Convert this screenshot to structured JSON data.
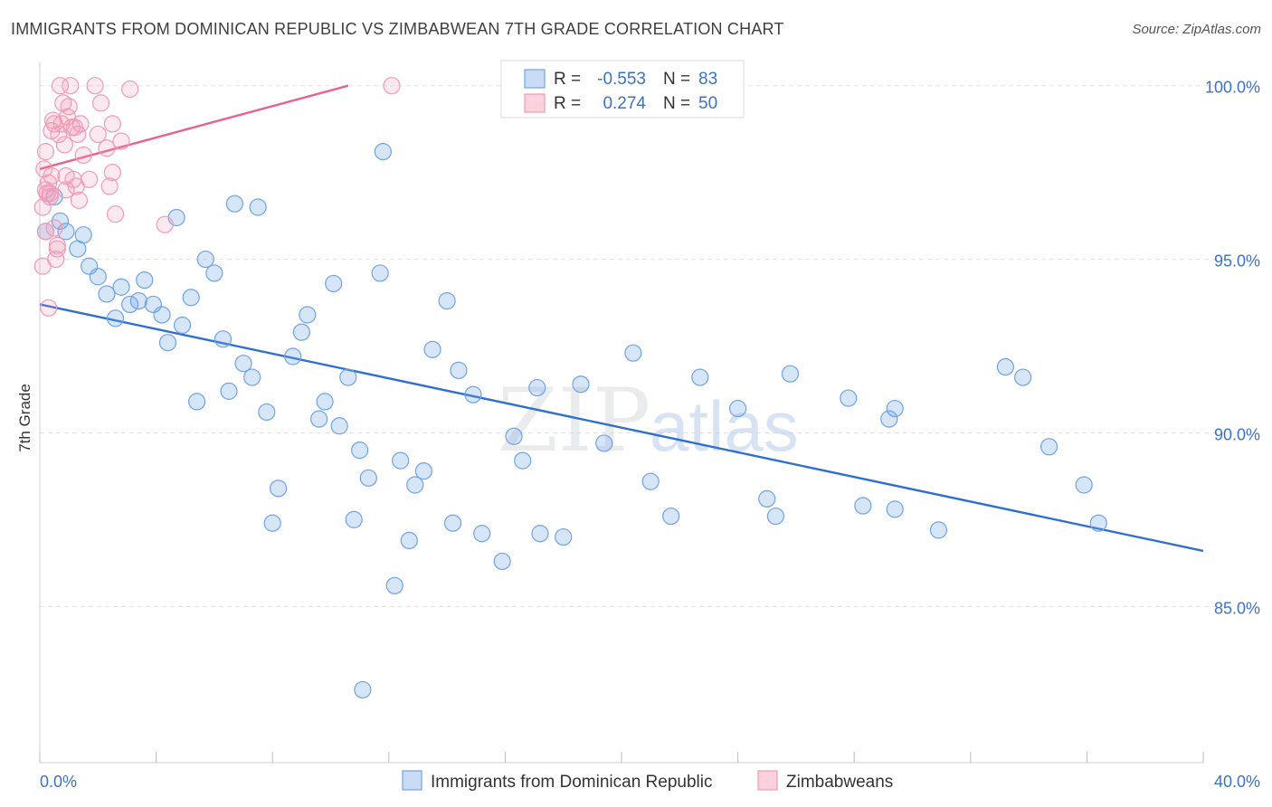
{
  "title": "IMMIGRANTS FROM DOMINICAN REPUBLIC VS ZIMBABWEAN 7TH GRADE CORRELATION CHART",
  "source": "Source: ZipAtlas.com",
  "watermark": {
    "zip": "ZIP",
    "atlas": "atlas"
  },
  "chart_data": {
    "type": "scatter",
    "title": "IMMIGRANTS FROM DOMINICAN REPUBLIC VS ZIMBABWEAN 7TH GRADE CORRELATION CHART",
    "xlabel": "",
    "ylabel": "7th Grade",
    "xlim": [
      0,
      40
    ],
    "ylim": [
      80.5,
      100.8
    ],
    "x_tick_labels": [
      {
        "value": 0,
        "label": "0.0%"
      },
      {
        "value": 40,
        "label": "40.0%"
      }
    ],
    "y_tick_labels": [
      {
        "value": 100,
        "label": "100.0%"
      },
      {
        "value": 95,
        "label": "95.0%"
      },
      {
        "value": 90,
        "label": "90.0%"
      },
      {
        "value": 85,
        "label": "85.0%"
      }
    ],
    "grid": true,
    "legend_position": "top-center",
    "series": [
      {
        "name": "Immigrants from Dominican Republic",
        "color": "#6fa3e6",
        "line_color": "#2f6fd0",
        "R": "-0.553",
        "N": "83",
        "trend": {
          "x": [
            0,
            40
          ],
          "y": [
            93.7,
            86.6
          ]
        },
        "points": [
          [
            0.2,
            95.8
          ],
          [
            0.5,
            96.8
          ],
          [
            0.7,
            96.1
          ],
          [
            0.9,
            95.8
          ],
          [
            1.3,
            95.3
          ],
          [
            1.5,
            95.7
          ],
          [
            1.7,
            94.8
          ],
          [
            2.0,
            94.5
          ],
          [
            2.3,
            94.0
          ],
          [
            2.6,
            93.3
          ],
          [
            2.8,
            94.2
          ],
          [
            3.1,
            93.7
          ],
          [
            3.4,
            93.8
          ],
          [
            3.6,
            94.4
          ],
          [
            3.9,
            93.7
          ],
          [
            4.2,
            93.4
          ],
          [
            4.4,
            92.6
          ],
          [
            4.7,
            96.2
          ],
          [
            4.9,
            93.1
          ],
          [
            5.2,
            93.9
          ],
          [
            5.4,
            90.9
          ],
          [
            5.7,
            95.0
          ],
          [
            6.0,
            94.6
          ],
          [
            6.3,
            92.7
          ],
          [
            6.5,
            91.2
          ],
          [
            6.7,
            96.6
          ],
          [
            7.0,
            92.0
          ],
          [
            7.3,
            91.6
          ],
          [
            7.5,
            96.5
          ],
          [
            7.8,
            90.6
          ],
          [
            8.2,
            88.4
          ],
          [
            8.0,
            87.4
          ],
          [
            8.7,
            92.2
          ],
          [
            9.0,
            92.9
          ],
          [
            9.2,
            93.4
          ],
          [
            9.6,
            90.4
          ],
          [
            9.8,
            90.9
          ],
          [
            10.1,
            94.3
          ],
          [
            10.3,
            90.2
          ],
          [
            10.6,
            91.6
          ],
          [
            10.8,
            87.5
          ],
          [
            11.0,
            89.5
          ],
          [
            11.3,
            88.7
          ],
          [
            11.7,
            94.6
          ],
          [
            11.8,
            98.1
          ],
          [
            12.2,
            85.6
          ],
          [
            12.4,
            89.2
          ],
          [
            12.7,
            86.9
          ],
          [
            12.9,
            88.5
          ],
          [
            13.2,
            88.9
          ],
          [
            13.5,
            92.4
          ],
          [
            14.0,
            93.8
          ],
          [
            14.2,
            87.4
          ],
          [
            14.4,
            91.8
          ],
          [
            14.9,
            91.1
          ],
          [
            15.2,
            87.1
          ],
          [
            15.9,
            86.3
          ],
          [
            16.3,
            89.9
          ],
          [
            16.6,
            89.2
          ],
          [
            17.1,
            91.3
          ],
          [
            17.2,
            87.1
          ],
          [
            18.0,
            87.0
          ],
          [
            18.6,
            91.4
          ],
          [
            19.4,
            89.7
          ],
          [
            20.4,
            92.3
          ],
          [
            21.0,
            88.6
          ],
          [
            21.7,
            87.6
          ],
          [
            22.7,
            91.6
          ],
          [
            24.0,
            90.7
          ],
          [
            25.0,
            88.1
          ],
          [
            25.3,
            87.6
          ],
          [
            25.8,
            91.7
          ],
          [
            27.8,
            91.0
          ],
          [
            28.3,
            87.9
          ],
          [
            29.2,
            90.4
          ],
          [
            29.4,
            90.7
          ],
          [
            29.4,
            87.8
          ],
          [
            30.9,
            87.2
          ],
          [
            33.2,
            91.9
          ],
          [
            33.8,
            91.6
          ],
          [
            34.7,
            89.6
          ],
          [
            35.9,
            88.5
          ],
          [
            36.4,
            87.4
          ],
          [
            11.1,
            82.6
          ]
        ]
      },
      {
        "name": "Zimbabweans",
        "color": "#f19ab8",
        "line_color": "#e8628c",
        "R": "0.274",
        "N": "50",
        "trend": {
          "x": [
            0,
            10.6
          ],
          "y": [
            97.6,
            100.0
          ]
        },
        "points": [
          [
            0.1,
            94.8
          ],
          [
            0.1,
            96.5
          ],
          [
            0.15,
            97.6
          ],
          [
            0.2,
            97.0
          ],
          [
            0.2,
            98.1
          ],
          [
            0.25,
            96.9
          ],
          [
            0.3,
            97.2
          ],
          [
            0.35,
            96.8
          ],
          [
            0.4,
            98.7
          ],
          [
            0.45,
            99.0
          ],
          [
            0.5,
            95.9
          ],
          [
            0.55,
            95.0
          ],
          [
            0.6,
            95.3
          ],
          [
            0.65,
            98.6
          ],
          [
            0.7,
            100.0
          ],
          [
            0.75,
            98.9
          ],
          [
            0.8,
            99.5
          ],
          [
            0.85,
            98.3
          ],
          [
            0.9,
            97.0
          ],
          [
            0.95,
            99.1
          ],
          [
            1.0,
            99.4
          ],
          [
            1.05,
            100.0
          ],
          [
            1.1,
            98.8
          ],
          [
            1.15,
            97.3
          ],
          [
            1.2,
            98.8
          ],
          [
            1.25,
            97.1
          ],
          [
            1.3,
            98.6
          ],
          [
            1.35,
            96.7
          ],
          [
            1.5,
            98.0
          ],
          [
            1.7,
            97.3
          ],
          [
            1.9,
            100.0
          ],
          [
            2.0,
            98.6
          ],
          [
            2.1,
            99.5
          ],
          [
            2.3,
            98.2
          ],
          [
            2.4,
            97.1
          ],
          [
            2.5,
            97.5
          ],
          [
            2.5,
            98.9
          ],
          [
            2.6,
            96.3
          ],
          [
            2.8,
            98.4
          ],
          [
            3.1,
            99.9
          ],
          [
            4.3,
            96.0
          ],
          [
            12.1,
            100.0
          ],
          [
            0.2,
            95.8
          ],
          [
            0.3,
            93.6
          ],
          [
            0.4,
            97.4
          ],
          [
            0.5,
            98.9
          ],
          [
            0.6,
            95.4
          ],
          [
            0.9,
            97.4
          ],
          [
            1.4,
            98.9
          ],
          [
            0.35,
            96.9
          ]
        ]
      }
    ]
  },
  "legend": {
    "r_label": "R =",
    "n_label": "N =",
    "rows": [
      {
        "r": "-0.553",
        "n": "83"
      },
      {
        "r": "0.274",
        "n": "50"
      }
    ]
  },
  "bottom_legend": [
    "Immigrants from Dominican Republic",
    "Zimbabweans"
  ]
}
